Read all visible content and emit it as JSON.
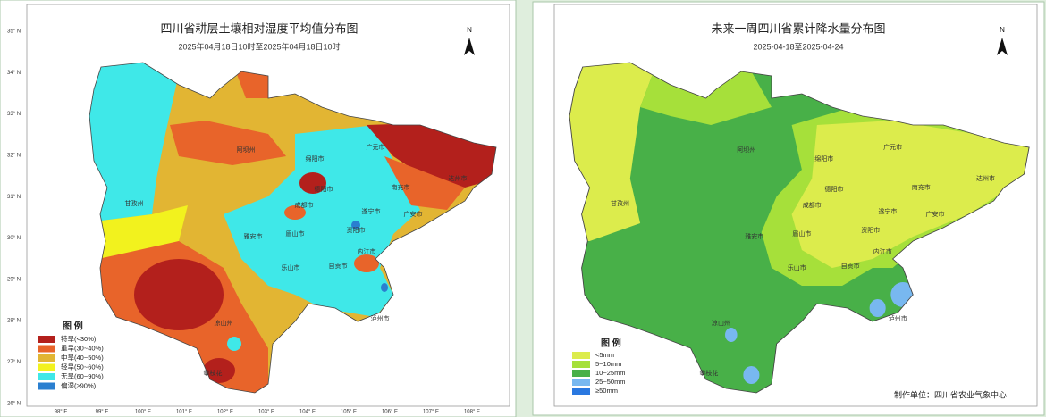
{
  "panels": [
    {
      "title": "四川省耕层土壤相对湿度平均值分布图",
      "subtitle": "2025年04月18日10时至2025年04月18日10时",
      "north": "N",
      "lat_labels": [
        "35° N",
        "34° N",
        "33° N",
        "32° N",
        "31° N",
        "30° N",
        "29° N",
        "28° N",
        "27° N",
        "26° N"
      ],
      "lon_labels": [
        "98° E",
        "99° E",
        "100° E",
        "101° E",
        "102° E",
        "103° E",
        "104° E",
        "105° E",
        "106° E",
        "107° E",
        "108° E"
      ],
      "legend": {
        "title": "图 例",
        "items": [
          {
            "label": "特旱(<30%)",
            "color": "#b3201c"
          },
          {
            "label": "重旱(30~40%)",
            "color": "#e8642a"
          },
          {
            "label": "中旱(40~50%)",
            "color": "#e2b533"
          },
          {
            "label": "轻旱(50~60%)",
            "color": "#f2f21e"
          },
          {
            "label": "无旱(60~90%)",
            "color": "#3fe8e8"
          },
          {
            "label": "偏湿(≥90%)",
            "color": "#2a7fd0"
          }
        ]
      },
      "cities": [
        "阿坝州",
        "甘孜州",
        "绵阳市",
        "广元市",
        "德阳市",
        "南充市",
        "达州市",
        "成都市",
        "遂宁市",
        "广安市",
        "雅安市",
        "眉山市",
        "资阳市",
        "乐山市",
        "内江市",
        "自贡市",
        "泸州市",
        "凉山州",
        "攀枝花"
      ]
    },
    {
      "title": "未来一周四川省累计降水量分布图",
      "subtitle": "2025-04-18至2025-04-24",
      "north": "N",
      "legend": {
        "title": "图 例",
        "items": [
          {
            "label": "<5mm",
            "color": "#dcec4c"
          },
          {
            "label": "5~10mm",
            "color": "#a6e03a"
          },
          {
            "label": "10~25mm",
            "color": "#48b048"
          },
          {
            "label": "25~50mm",
            "color": "#78b8f0"
          },
          {
            "label": "≥50mm",
            "color": "#2a78e0"
          }
        ]
      },
      "cities": [
        "阿坝州",
        "甘孜州",
        "绵阳市",
        "广元市",
        "德阳市",
        "南充市",
        "达州市",
        "成都市",
        "遂宁市",
        "广安市",
        "雅安市",
        "眉山市",
        "资阳市",
        "乐山市",
        "内江市",
        "自贡市",
        "泸州市",
        "凉山州",
        "攀枝花"
      ],
      "credit": "制作单位：四川省农业气象中心"
    }
  ]
}
